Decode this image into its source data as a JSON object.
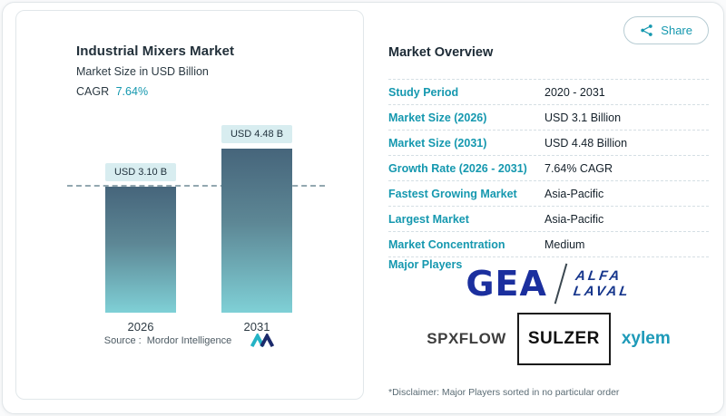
{
  "share": {
    "label": "Share"
  },
  "chart_panel": {
    "title": "Industrial Mixers Market",
    "subtitle": "Market Size in USD Billion",
    "cagr_label": "CAGR",
    "cagr_value": "7.64%",
    "source_label": "Source :",
    "source_value": "Mordor Intelligence"
  },
  "chart_data": {
    "type": "bar",
    "title": "Industrial Mixers Market",
    "ylabel": "Market Size in USD Billion",
    "categories": [
      "2026",
      "2031"
    ],
    "values": [
      3.1,
      4.48
    ],
    "value_labels": [
      "USD 3.10 B",
      "USD 4.48 B"
    ],
    "ylim": [
      0,
      4.6
    ],
    "dashed_reference": 3.1,
    "grid": false,
    "legend": false
  },
  "overview": {
    "title": "Market Overview",
    "rows": [
      {
        "label": "Study Period",
        "value": "2020 - 2031"
      },
      {
        "label": "Market Size (2026)",
        "value": "USD 3.1 Billion"
      },
      {
        "label": "Market Size (2031)",
        "value": "USD 4.48 Billion"
      },
      {
        "label": "Growth Rate (2026 - 2031)",
        "value": "7.64% CAGR"
      },
      {
        "label": "Fastest Growing Market",
        "value": "Asia-Pacific"
      },
      {
        "label": "Largest Market",
        "value": "Asia-Pacific"
      },
      {
        "label": "Market Concentration",
        "value": "Medium"
      }
    ],
    "major_players_label": "Major Players",
    "players": [
      {
        "name": "GEA"
      },
      {
        "name": "ALFA LAVAL",
        "line1": "ALFA",
        "line2": "LAVAL"
      },
      {
        "name": "SPXFLOW"
      },
      {
        "name": "SULZER"
      },
      {
        "name": "xylem"
      }
    ],
    "disclaimer": "*Disclaimer: Major Players sorted in no particular order"
  },
  "colors": {
    "accent_teal": "#1598af",
    "bar_gradient_top": "#46657b",
    "bar_gradient_bottom": "#7fd0d6",
    "value_chip_bg": "#d8edf0",
    "reference_line": "#93a7b0",
    "gea_navy": "#1b2f9e",
    "alfa_laval_blue": "#16368c",
    "xylem_teal": "#1e9ab8"
  }
}
